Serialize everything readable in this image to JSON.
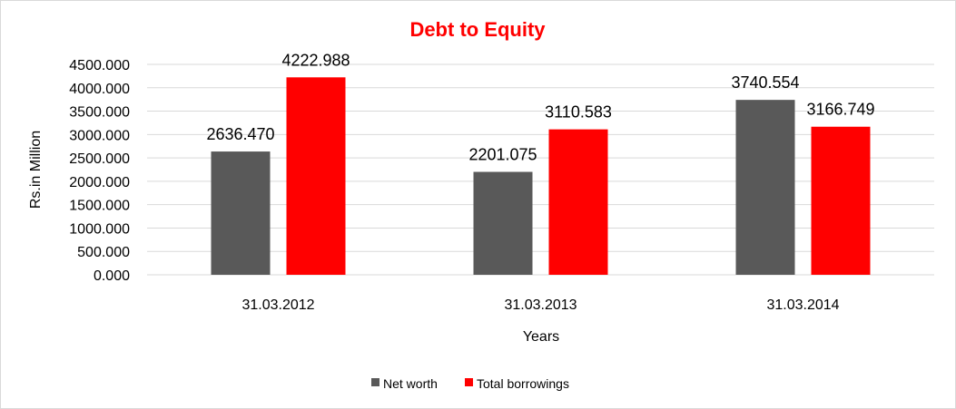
{
  "chart_data": {
    "type": "bar",
    "title": "Debt to Equity",
    "xlabel": "Years",
    "ylabel": "Rs.in Million",
    "categories": [
      "31.03.2012",
      "31.03.2013",
      "31.03.2014"
    ],
    "series": [
      {
        "name": "Net worth",
        "color": "#595959",
        "values": [
          2636.47,
          2201.075,
          3740.554
        ],
        "labels": [
          "2636.470",
          "2201.075",
          "3740.554"
        ]
      },
      {
        "name": "Total borrowings",
        "color": "#ff0000",
        "values": [
          4222.988,
          3110.583,
          3166.749
        ],
        "labels": [
          "4222.988",
          "3110.583",
          "3166.749"
        ]
      }
    ],
    "ylim": [
      0,
      4500
    ],
    "yticks": [
      0,
      500,
      1000,
      1500,
      2000,
      2500,
      3000,
      3500,
      4000,
      4500
    ],
    "ytick_labels": [
      "0.000",
      "500.000",
      "1000.000",
      "1500.000",
      "2000.000",
      "2500.000",
      "3000.000",
      "3500.000",
      "4000.000",
      "4500.000"
    ],
    "grid": true,
    "legend_position": "bottom",
    "title_color": "#ff0000"
  }
}
